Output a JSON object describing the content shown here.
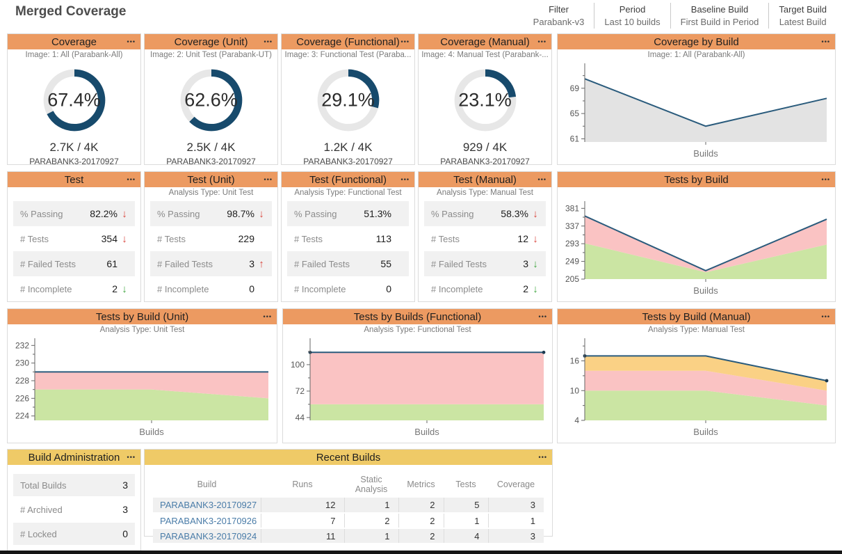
{
  "page": {
    "title": "Merged Coverage"
  },
  "icons": {
    "menu": "•••"
  },
  "colors": {
    "header_orange": "#EC9A61",
    "header_yellow": "#EFCA67",
    "donut_blue": "#174A6C",
    "donut_track": "#E7E7E7",
    "line_blue": "#2A5B7C",
    "area_gray": "#E3E3E3",
    "area_green": "#CBE5A3",
    "area_pink": "#FAC3C3",
    "area_orange": "#FAD185",
    "arrow_red": "#D9453D",
    "arrow_green": "#3EA53E",
    "link_blue": "#4A7CA8"
  },
  "toolbar": {
    "filters": [
      {
        "label": "Filter",
        "value": "Parabank-v3"
      },
      {
        "label": "Period",
        "value": "Last 10 builds"
      },
      {
        "label": "Baseline Build",
        "value": "First Build in Period"
      },
      {
        "label": "Target Build",
        "value": "Latest Build"
      }
    ]
  },
  "coverage_widgets": [
    {
      "title": "Coverage",
      "subtitle": "Image: 1: All (Parabank-All)",
      "percent": 67.4,
      "percent_label": "67.4%",
      "fraction": "2.7K / 4K",
      "build": "PARABANK3-20170927"
    },
    {
      "title": "Coverage (Unit)",
      "subtitle": "Image: 2: Unit Test (Parabank-UT)",
      "percent": 62.6,
      "percent_label": "62.6%",
      "fraction": "2.5K / 4K",
      "build": "PARABANK3-20170927"
    },
    {
      "title": "Coverage (Functional)",
      "subtitle": "Image: 3: Functional Test (Paraba...",
      "percent": 29.1,
      "percent_label": "29.1%",
      "fraction": "1.2K / 4K",
      "build": "PARABANK3-20170927"
    },
    {
      "title": "Coverage (Manual)",
      "subtitle": "Image: 4: Manual Test (Parabank-...",
      "percent": 23.1,
      "percent_label": "23.1%",
      "fraction": "929 / 4K",
      "build": "PARABANK3-20170927"
    }
  ],
  "test_widgets": [
    {
      "title": "Test",
      "subtitle": "",
      "rows": [
        {
          "label": "% Passing",
          "value": "82.2%",
          "arrow": "↓",
          "trend": "down-red"
        },
        {
          "label": "# Tests",
          "value": "354",
          "arrow": "↓",
          "trend": "down-red"
        },
        {
          "label": "# Failed Tests",
          "value": "61",
          "arrow": "",
          "trend": "none"
        },
        {
          "label": "# Incomplete",
          "value": "2",
          "arrow": "↓",
          "trend": "down-green"
        }
      ]
    },
    {
      "title": "Test (Unit)",
      "subtitle": "Analysis Type: Unit Test",
      "rows": [
        {
          "label": "% Passing",
          "value": "98.7%",
          "arrow": "↓",
          "trend": "down-red"
        },
        {
          "label": "# Tests",
          "value": "229",
          "arrow": "",
          "trend": "none"
        },
        {
          "label": "# Failed Tests",
          "value": "3",
          "arrow": "↑",
          "trend": "up-red"
        },
        {
          "label": "# Incomplete",
          "value": "0",
          "arrow": "",
          "trend": "none"
        }
      ]
    },
    {
      "title": "Test (Functional)",
      "subtitle": "Analysis Type: Functional Test",
      "rows": [
        {
          "label": "% Passing",
          "value": "51.3%",
          "arrow": "",
          "trend": "none"
        },
        {
          "label": "# Tests",
          "value": "113",
          "arrow": "",
          "trend": "none"
        },
        {
          "label": "# Failed Tests",
          "value": "55",
          "arrow": "",
          "trend": "none"
        },
        {
          "label": "# Incomplete",
          "value": "0",
          "arrow": "",
          "trend": "none"
        }
      ]
    },
    {
      "title": "Test (Manual)",
      "subtitle": "Analysis Type: Manual Test",
      "rows": [
        {
          "label": "% Passing",
          "value": "58.3%",
          "arrow": "↓",
          "trend": "down-red"
        },
        {
          "label": "# Tests",
          "value": "12",
          "arrow": "↓",
          "trend": "down-red"
        },
        {
          "label": "# Failed Tests",
          "value": "3",
          "arrow": "↓",
          "trend": "down-green"
        },
        {
          "label": "# Incomplete",
          "value": "2",
          "arrow": "↓",
          "trend": "down-green"
        }
      ]
    }
  ],
  "admin_widget": {
    "title": "Build Administration",
    "rows": [
      {
        "label": "Total Builds",
        "value": "3"
      },
      {
        "label": "# Archived",
        "value": "3"
      },
      {
        "label": "# Locked",
        "value": "0"
      }
    ]
  },
  "recent_builds": {
    "title": "Recent Builds",
    "columns": [
      "Build",
      "Runs",
      "Static Analysis",
      "Metrics",
      "Tests",
      "Coverage"
    ],
    "rows": [
      {
        "build": "PARABANK3-20170927",
        "values": [
          "12",
          "1",
          "2",
          "5",
          "3"
        ]
      },
      {
        "build": "PARABANK3-20170926",
        "values": [
          "7",
          "2",
          "2",
          "1",
          "1"
        ]
      },
      {
        "build": "PARABANK3-20170924",
        "values": [
          "11",
          "1",
          "2",
          "4",
          "3"
        ]
      }
    ]
  },
  "chart_data": [
    {
      "key": "coverage-by-build",
      "type": "area",
      "title": "Coverage by Build",
      "subtitle": "Image: 1: All (Parabank-All)",
      "xlabel": "Builds",
      "builds_count": 3,
      "ylim": [
        60.5,
        72.5
      ],
      "yticks": [
        61,
        65,
        69
      ],
      "series": [
        {
          "name": "coverage-percent-area",
          "color": "#E3E3E3",
          "values": [
            70.5,
            63.0,
            67.4
          ]
        }
      ],
      "line": {
        "name": "coverage-percent",
        "color": "#2A5B7C",
        "values": [
          70.5,
          63.0,
          67.4
        ]
      },
      "dots": false
    },
    {
      "key": "tests-by-build",
      "type": "stacked-area",
      "title": "Tests by Build",
      "subtitle": "",
      "xlabel": "Builds",
      "builds_count": 3,
      "ylim": [
        205,
        392
      ],
      "yticks": [
        205,
        249,
        293,
        337,
        381
      ],
      "series": [
        {
          "name": "passed",
          "color": "#CBE5A3",
          "values": [
            294,
            222,
            291
          ]
        },
        {
          "name": "failed",
          "color": "#FAC3C3",
          "values": [
            68,
            4,
            63
          ]
        }
      ],
      "line": {
        "name": "total-tests",
        "color": "#2A5B7C",
        "values": [
          362,
          226,
          354
        ]
      },
      "dots": false
    },
    {
      "key": "tests-by-build-unit",
      "type": "stacked-area",
      "title": "Tests by Build (Unit)",
      "subtitle": "Analysis Type: Unit Test",
      "xlabel": "Builds",
      "builds_count": 3,
      "ylim": [
        223.5,
        232.5
      ],
      "yticks": [
        224,
        226,
        228,
        230,
        232
      ],
      "series": [
        {
          "name": "passed",
          "color": "#CBE5A3",
          "values": [
            227,
            227,
            226
          ]
        },
        {
          "name": "failed",
          "color": "#FAC3C3",
          "values": [
            2,
            2,
            3
          ]
        }
      ],
      "line": {
        "name": "total-tests",
        "color": "#2A5B7C",
        "values": [
          229,
          229,
          229
        ]
      },
      "dots": false
    },
    {
      "key": "tests-by-builds-functional",
      "type": "stacked-area",
      "title": "Tests by Builds (Functional)",
      "subtitle": "Analysis Type: Functional Test",
      "xlabel": "Builds",
      "builds_count": 3,
      "ylim": [
        41,
        125
      ],
      "yticks": [
        44,
        72,
        100
      ],
      "series": [
        {
          "name": "passed",
          "color": "#CBE5A3",
          "values": [
            58,
            58,
            58
          ]
        },
        {
          "name": "failed",
          "color": "#FAC3C3",
          "values": [
            55,
            55,
            55
          ]
        }
      ],
      "line": {
        "name": "total-tests",
        "color": "#2A5B7C",
        "values": [
          113,
          113,
          113
        ]
      },
      "dots": true
    },
    {
      "key": "tests-by-build-manual",
      "type": "stacked-area",
      "title": "Tests by Build (Manual)",
      "subtitle": "Analysis Type: Manual Test",
      "xlabel": "Builds",
      "builds_count": 3,
      "ylim": [
        4,
        20
      ],
      "yticks": [
        4,
        10,
        16
      ],
      "series": [
        {
          "name": "passed",
          "color": "#CBE5A3",
          "values": [
            10,
            10,
            7
          ]
        },
        {
          "name": "failed",
          "color": "#FAC3C3",
          "values": [
            4,
            4,
            3
          ]
        },
        {
          "name": "incomplete",
          "color": "#FAD185",
          "values": [
            3,
            3,
            2
          ]
        }
      ],
      "line": {
        "name": "total-tests",
        "color": "#2A5B7C",
        "values": [
          17,
          17,
          12
        ]
      },
      "dots": true
    }
  ]
}
